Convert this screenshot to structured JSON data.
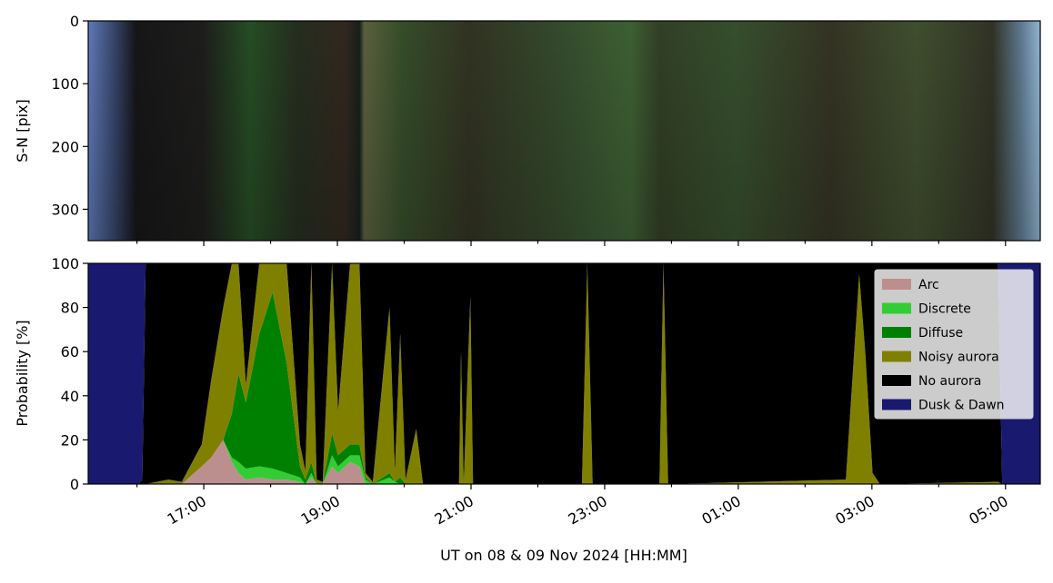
{
  "chart_data": [
    {
      "type": "image",
      "ylabel": "S-N [pix]",
      "ylim": [
        350,
        0
      ],
      "yticks": [
        0,
        100,
        200,
        300
      ]
    },
    {
      "type": "stacked_area",
      "ylabel": "Probability [%]",
      "xlabel": "UT on 08 & 09 Nov 2024 [HH:MM]",
      "xlim": [
        15.27,
        29.52
      ],
      "xticks": [
        {
          "value": 17,
          "label": "17:00"
        },
        {
          "value": 19,
          "label": "19:00"
        },
        {
          "value": 21,
          "label": "21:00"
        },
        {
          "value": 23,
          "label": "23:00"
        },
        {
          "value": 25,
          "label": "01:00"
        },
        {
          "value": 27,
          "label": "03:00"
        },
        {
          "value": 29,
          "label": "05:00"
        }
      ],
      "xminorticks": [
        16,
        18,
        20,
        22,
        24,
        26,
        28
      ],
      "ylim": [
        0,
        100
      ],
      "yticks": [
        0,
        20,
        40,
        60,
        80,
        100
      ],
      "legend": "upper right",
      "x": [
        15.27,
        16.02,
        16.08,
        16.13,
        16.47,
        16.67,
        16.97,
        17.11,
        17.29,
        17.42,
        17.52,
        17.63,
        17.83,
        18.03,
        18.24,
        18.44,
        18.52,
        18.61,
        18.69,
        18.78,
        18.92,
        19.01,
        19.19,
        19.33,
        19.42,
        19.53,
        19.78,
        19.86,
        19.94,
        20.02,
        20.18,
        20.28,
        20.82,
        20.85,
        20.89,
        20.99,
        21.03,
        22.66,
        22.74,
        22.82,
        23.82,
        23.88,
        23.95,
        26.61,
        26.81,
        26.9,
        27.01,
        27.12,
        28.89,
        28.95,
        29.52
      ],
      "series": [
        {
          "name": "Arc",
          "color": "#bc8f8f",
          "values": [
            0,
            0,
            0,
            0,
            0,
            0,
            8,
            12,
            20,
            10,
            5,
            2,
            3,
            2,
            2,
            1,
            0,
            3,
            0,
            0,
            8,
            5,
            10,
            8,
            0,
            0,
            0,
            0,
            0,
            0,
            0,
            0,
            0,
            0,
            0,
            0,
            0,
            0,
            0,
            0,
            0,
            0,
            0,
            0,
            0,
            0,
            0,
            0,
            0,
            0,
            0
          ]
        },
        {
          "name": "Discrete",
          "color": "#32cd32",
          "values": [
            0,
            0,
            0,
            0,
            0,
            0,
            0,
            0,
            0,
            2,
            5,
            5,
            5,
            5,
            3,
            2,
            0,
            2,
            0,
            0,
            5,
            3,
            3,
            5,
            2,
            0,
            3,
            1,
            0,
            0,
            0,
            0,
            0,
            0,
            0,
            0,
            0,
            0,
            0,
            0,
            0,
            0,
            0,
            0,
            0,
            0,
            0,
            0,
            0,
            0,
            0
          ]
        },
        {
          "name": "Diffuse",
          "color": "#008000",
          "values": [
            0,
            0,
            0,
            0,
            0,
            0,
            0,
            0,
            0,
            20,
            40,
            30,
            60,
            80,
            50,
            5,
            2,
            5,
            0,
            0,
            10,
            5,
            5,
            5,
            1,
            0,
            2,
            0,
            3,
            0,
            0,
            0,
            0,
            0,
            0,
            0,
            0,
            0,
            0,
            0,
            0,
            0,
            0,
            0,
            0,
            0,
            0,
            0,
            0,
            0,
            0
          ]
        },
        {
          "name": "Noisy aurora",
          "color": "#808000",
          "values": [
            0,
            0,
            0,
            0,
            2,
            1,
            10,
            35,
            60,
            68,
            50,
            8,
            32,
            13,
            45,
            10,
            4,
            90,
            2,
            1,
            77,
            20,
            82,
            82,
            2,
            1,
            75,
            5,
            65,
            2,
            25,
            0,
            0,
            60,
            0,
            85,
            0,
            0,
            100,
            0,
            0,
            100,
            0,
            2,
            95,
            60,
            5,
            0,
            1,
            0,
            0
          ]
        },
        {
          "name": "No aurora",
          "color": "#000000",
          "values": [
            0,
            0,
            2,
            100,
            98,
            99,
            82,
            53,
            20,
            0,
            0,
            55,
            0,
            0,
            0,
            82,
            94,
            0,
            98,
            99,
            0,
            67,
            0,
            0,
            95,
            99,
            20,
            94,
            32,
            98,
            75,
            100,
            100,
            40,
            100,
            15,
            100,
            100,
            0,
            100,
            100,
            0,
            100,
            98,
            5,
            40,
            95,
            100,
            99,
            0,
            0
          ]
        },
        {
          "name": "Dusk & Dawn",
          "color": "#191970",
          "values": [
            100,
            100,
            98,
            0,
            0,
            0,
            0,
            0,
            0,
            0,
            0,
            0,
            0,
            0,
            0,
            0,
            0,
            0,
            0,
            0,
            0,
            0,
            0,
            0,
            0,
            0,
            0,
            0,
            0,
            0,
            0,
            0,
            0,
            0,
            0,
            0,
            0,
            0,
            0,
            0,
            0,
            0,
            0,
            0,
            0,
            0,
            0,
            0,
            0,
            100,
            100
          ]
        }
      ]
    }
  ]
}
